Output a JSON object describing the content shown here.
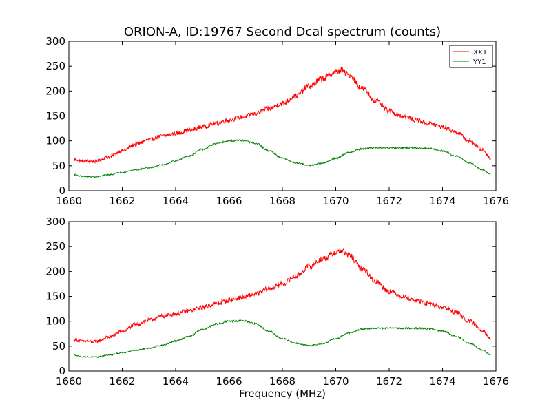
{
  "chart_data": {
    "type": "line",
    "title": "ORION-A, ID:19767 Second Dcal spectrum (counts)",
    "xlabel": "Frequency (MHz)",
    "ylabel": "",
    "xlim": [
      1660,
      1676
    ],
    "ylim": [
      0,
      300
    ],
    "x_ticks": [
      1660,
      1662,
      1664,
      1666,
      1668,
      1670,
      1672,
      1674,
      1676
    ],
    "y_ticks": [
      0,
      50,
      100,
      150,
      200,
      250,
      300
    ],
    "legend_position": "top-right",
    "grid": false,
    "panels": [
      {
        "series": [
          {
            "name": "XX1",
            "color": "#ff0000",
            "x": [
              1660.2,
              1660.5,
              1661.0,
              1661.5,
              1662.0,
              1662.5,
              1663.0,
              1663.5,
              1664.0,
              1664.5,
              1665.0,
              1665.5,
              1666.0,
              1666.5,
              1667.0,
              1667.5,
              1668.0,
              1668.5,
              1669.0,
              1669.5,
              1670.0,
              1670.2,
              1670.5,
              1671.0,
              1671.5,
              1672.0,
              1672.5,
              1673.0,
              1673.5,
              1674.0,
              1674.5,
              1675.0,
              1675.5,
              1675.8
            ],
            "values": [
              63,
              60,
              59,
              68,
              80,
              93,
              102,
              110,
              115,
              121,
              128,
              135,
              142,
              148,
              155,
              165,
              175,
              190,
              210,
              225,
              238,
              242,
              232,
              205,
              180,
              160,
              150,
              142,
              135,
              128,
              118,
              100,
              82,
              65
            ]
          },
          {
            "name": "YY1",
            "color": "#008000",
            "x": [
              1660.2,
              1660.5,
              1661.0,
              1661.5,
              1662.0,
              1662.5,
              1663.0,
              1663.5,
              1664.0,
              1664.5,
              1665.0,
              1665.5,
              1666.0,
              1666.5,
              1667.0,
              1667.5,
              1668.0,
              1668.5,
              1669.0,
              1669.5,
              1670.0,
              1670.5,
              1671.0,
              1671.5,
              1672.0,
              1672.5,
              1673.0,
              1673.5,
              1674.0,
              1674.5,
              1675.0,
              1675.5,
              1675.8
            ],
            "values": [
              32,
              29,
              28,
              32,
              37,
              42,
              46,
              52,
              60,
              70,
              83,
              94,
              100,
              101,
              95,
              80,
              65,
              56,
              51,
              55,
              65,
              77,
              84,
              86,
              86,
              86,
              86,
              85,
              80,
              70,
              56,
              42,
              33
            ]
          }
        ]
      },
      {
        "series": [
          {
            "name": "XX1",
            "color": "#ff0000",
            "x": [
              1660.2,
              1660.5,
              1661.0,
              1661.5,
              1662.0,
              1662.5,
              1663.0,
              1663.5,
              1664.0,
              1664.5,
              1665.0,
              1665.5,
              1666.0,
              1666.5,
              1667.0,
              1667.5,
              1668.0,
              1668.5,
              1669.0,
              1669.5,
              1670.0,
              1670.2,
              1670.5,
              1671.0,
              1671.5,
              1672.0,
              1672.5,
              1673.0,
              1673.5,
              1674.0,
              1674.5,
              1675.0,
              1675.5,
              1675.8
            ],
            "values": [
              63,
              60,
              59,
              68,
              80,
              93,
              102,
              110,
              115,
              121,
              128,
              135,
              142,
              148,
              155,
              165,
              175,
              190,
              210,
              225,
              238,
              242,
              232,
              205,
              180,
              160,
              150,
              142,
              135,
              128,
              118,
              100,
              82,
              65
            ]
          },
          {
            "name": "YY1",
            "color": "#008000",
            "x": [
              1660.2,
              1660.5,
              1661.0,
              1661.5,
              1662.0,
              1662.5,
              1663.0,
              1663.5,
              1664.0,
              1664.5,
              1665.0,
              1665.5,
              1666.0,
              1666.5,
              1667.0,
              1667.5,
              1668.0,
              1668.5,
              1669.0,
              1669.5,
              1670.0,
              1670.5,
              1671.0,
              1671.5,
              1672.0,
              1672.5,
              1673.0,
              1673.5,
              1674.0,
              1674.5,
              1675.0,
              1675.5,
              1675.8
            ],
            "values": [
              32,
              29,
              28,
              32,
              37,
              42,
              46,
              52,
              60,
              70,
              83,
              94,
              100,
              101,
              95,
              80,
              65,
              56,
              51,
              55,
              65,
              77,
              84,
              86,
              86,
              86,
              86,
              85,
              80,
              70,
              56,
              42,
              33
            ]
          }
        ]
      }
    ]
  }
}
